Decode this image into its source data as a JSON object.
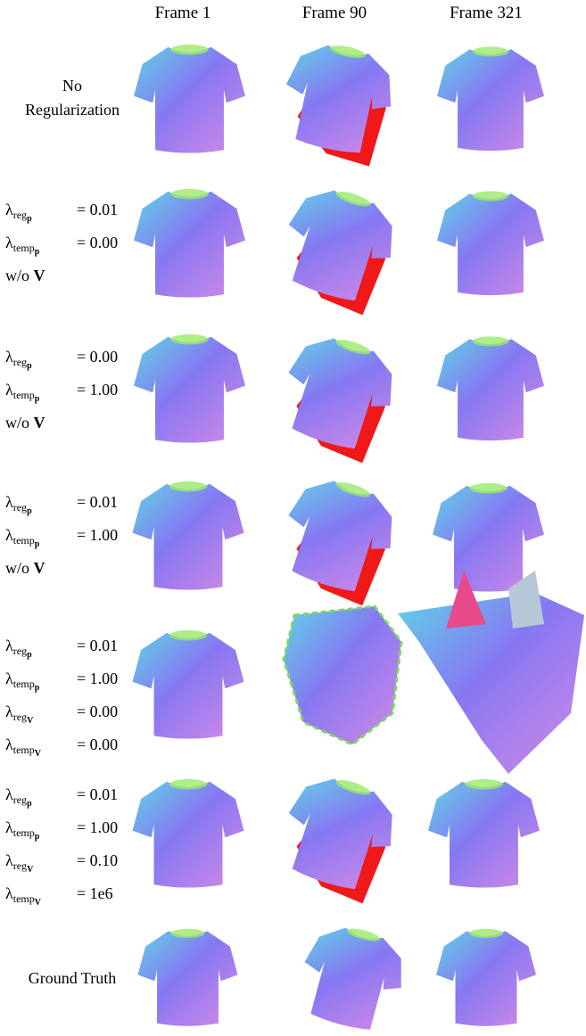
{
  "columns": [
    "Frame 1",
    "Frame 90",
    "Frame 321"
  ],
  "rows": [
    {
      "lines": [
        {
          "text": "No"
        },
        {
          "text": "Regularization"
        }
      ]
    },
    {
      "lines": [
        {
          "symbol": "λ",
          "sub": "reg",
          "subsub": "p",
          "value": "= 0.01"
        },
        {
          "symbol": "λ",
          "sub": "temp",
          "subsub": "p",
          "value": "= 0.00"
        },
        {
          "text": "w/o",
          "bold": "V"
        }
      ]
    },
    {
      "lines": [
        {
          "symbol": "λ",
          "sub": "reg",
          "subsub": "p",
          "value": "= 0.00"
        },
        {
          "symbol": "λ",
          "sub": "temp",
          "subsub": "p",
          "value": "= 1.00"
        },
        {
          "text": "w/o",
          "bold": "V"
        }
      ]
    },
    {
      "lines": [
        {
          "symbol": "λ",
          "sub": "reg",
          "subsub": "p",
          "value": "= 0.01"
        },
        {
          "symbol": "λ",
          "sub": "temp",
          "subsub": "p",
          "value": "= 1.00"
        },
        {
          "text": "w/o",
          "bold": "V"
        }
      ]
    },
    {
      "lines": [
        {
          "symbol": "λ",
          "sub": "reg",
          "subsub": "p",
          "value": "= 0.01"
        },
        {
          "symbol": "λ",
          "sub": "temp",
          "subsub": "p",
          "value": "= 1.00"
        },
        {
          "symbol": "λ",
          "sub": "reg",
          "subsub": "V",
          "value": "= 0.00"
        },
        {
          "symbol": "λ",
          "sub": "temp",
          "subsub": "V",
          "value": "= 0.00"
        }
      ]
    },
    {
      "lines": [
        {
          "symbol": "λ",
          "sub": "reg",
          "subsub": "p",
          "value": "= 0.01"
        },
        {
          "symbol": "λ",
          "sub": "temp",
          "subsub": "p",
          "value": "= 1.00"
        },
        {
          "symbol": "λ",
          "sub": "reg",
          "subsub": "V",
          "value": "= 0.10"
        },
        {
          "symbol": "λ",
          "sub": "temp",
          "subsub": "V",
          "value": "= 1e6"
        }
      ]
    },
    {
      "lines": [
        {
          "text": "Ground Truth"
        }
      ]
    }
  ]
}
